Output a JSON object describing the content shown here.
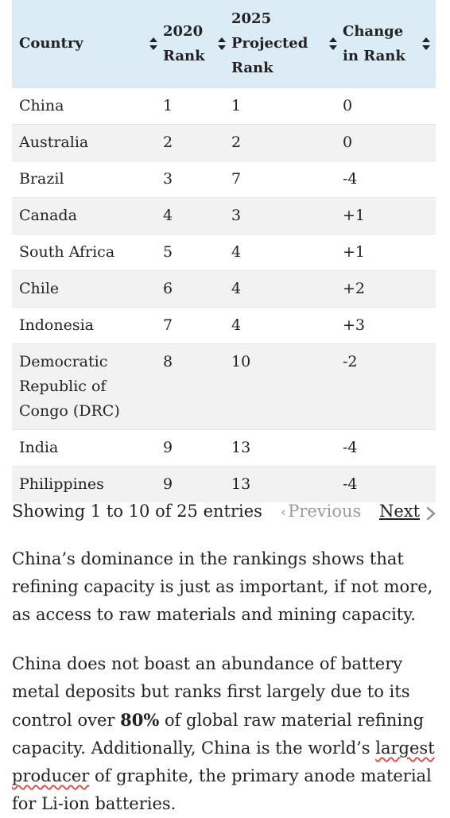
{
  "table": {
    "headers": [
      {
        "lines": [
          "Country"
        ]
      },
      {
        "lines": [
          "2020",
          "Rank"
        ]
      },
      {
        "lines": [
          "2025",
          "Projected",
          "Rank"
        ]
      },
      {
        "lines": [
          "Change",
          "in Rank"
        ]
      }
    ],
    "rows": [
      {
        "country": "China",
        "rank2020": "1",
        "rank2025": "1",
        "change": "0"
      },
      {
        "country": "Australia",
        "rank2020": "2",
        "rank2025": "2",
        "change": "0"
      },
      {
        "country": "Brazil",
        "rank2020": "3",
        "rank2025": "7",
        "change": "-4"
      },
      {
        "country": "Canada",
        "rank2020": "4",
        "rank2025": "3",
        "change": "+1"
      },
      {
        "country": "South Africa",
        "rank2020": "5",
        "rank2025": "4",
        "change": "+1"
      },
      {
        "country": "Chile",
        "rank2020": "6",
        "rank2025": "4",
        "change": "+2"
      },
      {
        "country": "Indonesia",
        "rank2020": "7",
        "rank2025": "4",
        "change": "+3"
      },
      {
        "country": "Democratic Republic of Congo (DRC)",
        "rank2020": "8",
        "rank2025": "10",
        "change": "-2"
      },
      {
        "country": "India",
        "rank2020": "9",
        "rank2025": "13",
        "change": "-4"
      },
      {
        "country": "Philippines",
        "rank2020": "9",
        "rank2025": "13",
        "change": "-4"
      }
    ]
  },
  "pager": {
    "info": "Showing 1 to 10 of 25 entries",
    "previous": "Previous",
    "next": "Next"
  },
  "paragraphs": {
    "p1": "China’s dominance in the rankings shows that refining capacity is just as important, if not more, as access to raw materials and mining capacity.",
    "p2": {
      "a": "China does not boast an abundance of battery metal deposits but ranks first largely due to its control over ",
      "bold": "80%",
      "b": " of global raw material refining capacity. Additionally, China is the world’s ",
      "link1": "largest",
      "space": " ",
      "link2": "producer",
      "c": " of graphite, the primary anode material for Li-ion batteries."
    }
  },
  "colors": {
    "header_bg": "#dcecf7",
    "stripe": "#f2f2f2",
    "spellcheck_underline": "#d9534f"
  },
  "icons": {
    "sort": "sort-updown-icon",
    "prev": "chevron-left-icon",
    "next": "chevron-right-icon"
  }
}
